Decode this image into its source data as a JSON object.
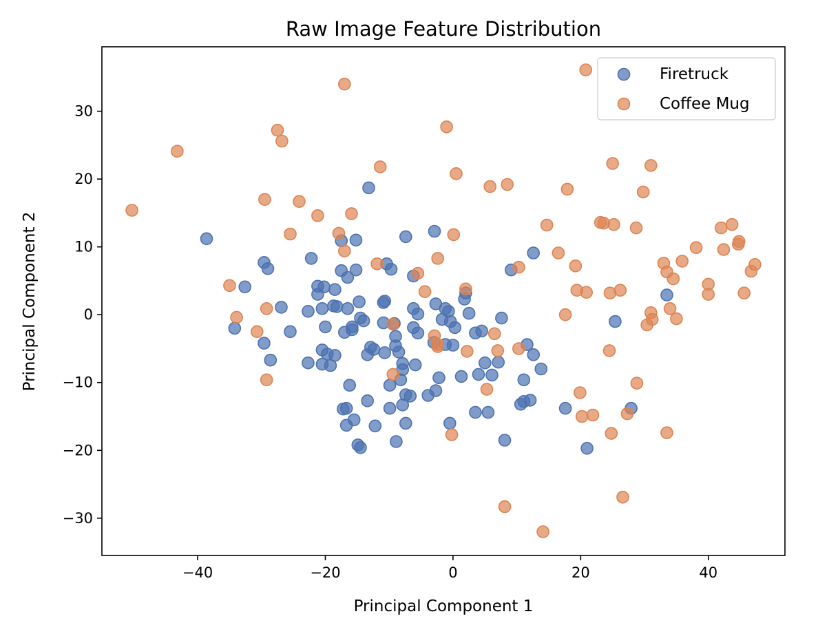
{
  "chart_data": {
    "type": "scatter",
    "title": "Raw Image Feature Distribution",
    "xlabel": "Principal Component 1",
    "ylabel": "Principal Component 2",
    "xlim": [
      -55,
      52
    ],
    "ylim": [
      -35.5,
      39.5
    ],
    "xticks": [
      -40,
      -20,
      0,
      20,
      40
    ],
    "yticks": [
      -30,
      -20,
      -10,
      0,
      10,
      20,
      30
    ],
    "grid": false,
    "legend_position": "top-right",
    "series": [
      {
        "name": "Firetruck",
        "color": "#4C72B0",
        "points": [
          [
            -38.6,
            11.2
          ],
          [
            -34.2,
            -2.0
          ],
          [
            -32.6,
            4.1
          ],
          [
            -29.6,
            7.7
          ],
          [
            -29.0,
            6.8
          ],
          [
            -29.6,
            -4.2
          ],
          [
            -28.6,
            -6.7
          ],
          [
            -26.9,
            1.1
          ],
          [
            -25.5,
            -2.5
          ],
          [
            -22.7,
            0.5
          ],
          [
            -22.2,
            8.3
          ],
          [
            -22.7,
            -7.1
          ],
          [
            -21.2,
            4.2
          ],
          [
            -21.2,
            3.0
          ],
          [
            -20.2,
            4.1
          ],
          [
            -20.5,
            0.9
          ],
          [
            -20.0,
            -1.8
          ],
          [
            -20.5,
            -5.2
          ],
          [
            -19.7,
            -5.8
          ],
          [
            -20.5,
            -7.3
          ],
          [
            -19.2,
            -7.5
          ],
          [
            -18.7,
            1.3
          ],
          [
            -18.2,
            1.2
          ],
          [
            -18.5,
            3.7
          ],
          [
            -18.5,
            -6.0
          ],
          [
            -17.5,
            10.9
          ],
          [
            -17.5,
            6.5
          ],
          [
            -16.5,
            5.5
          ],
          [
            -16.5,
            0.9
          ],
          [
            -17.0,
            -2.6
          ],
          [
            -15.8,
            -1.8
          ],
          [
            -15.8,
            -2.2
          ],
          [
            -15.2,
            11.0
          ],
          [
            -15.2,
            6.6
          ],
          [
            -14.7,
            1.9
          ],
          [
            -14.5,
            -0.5
          ],
          [
            -14.0,
            -0.9
          ],
          [
            -16.2,
            -10.4
          ],
          [
            -17.2,
            -13.9
          ],
          [
            -16.7,
            -13.8
          ],
          [
            -16.7,
            -16.3
          ],
          [
            -15.5,
            -15.5
          ],
          [
            -14.9,
            -19.2
          ],
          [
            -14.5,
            -19.6
          ],
          [
            -13.2,
            18.7
          ],
          [
            -13.4,
            -5.9
          ],
          [
            -12.9,
            -4.8
          ],
          [
            -12.4,
            -5.1
          ],
          [
            -13.4,
            -12.7
          ],
          [
            -12.2,
            -16.4
          ],
          [
            -10.9,
            1.8
          ],
          [
            -10.7,
            2.0
          ],
          [
            -10.4,
            7.5
          ],
          [
            -10.9,
            -1.2
          ],
          [
            -10.7,
            -5.6
          ],
          [
            -9.7,
            6.7
          ],
          [
            -9.2,
            -1.3
          ],
          [
            -9.0,
            -3.2
          ],
          [
            -9.0,
            -4.6
          ],
          [
            -8.5,
            -5.5
          ],
          [
            -9.9,
            -10.4
          ],
          [
            -9.9,
            -13.8
          ],
          [
            -8.2,
            -9.6
          ],
          [
            -7.9,
            -7.2
          ],
          [
            -7.9,
            -8.1
          ],
          [
            -7.9,
            -13.3
          ],
          [
            -7.4,
            -11.8
          ],
          [
            -7.4,
            -16.0
          ],
          [
            -6.7,
            -12.0
          ],
          [
            -8.9,
            -18.7
          ],
          [
            -7.4,
            11.5
          ],
          [
            -6.2,
            5.7
          ],
          [
            -6.2,
            0.9
          ],
          [
            -6.2,
            -1.9
          ],
          [
            -5.9,
            -7.4
          ],
          [
            -5.5,
            0.1
          ],
          [
            -5.5,
            -2.7
          ],
          [
            -2.9,
            12.3
          ],
          [
            -2.7,
            1.6
          ],
          [
            -3.0,
            -4.1
          ],
          [
            -1.7,
            -0.7
          ],
          [
            -1.2,
            0.9
          ],
          [
            -0.7,
            0.5
          ],
          [
            -0.4,
            -1.0
          ],
          [
            -1.2,
            -4.4
          ],
          [
            0.0,
            -4.5
          ],
          [
            -3.9,
            -11.9
          ],
          [
            -2.7,
            -11.2
          ],
          [
            -2.2,
            -9.3
          ],
          [
            0.3,
            -1.9
          ],
          [
            -0.5,
            -16.0
          ],
          [
            1.3,
            -9.1
          ],
          [
            1.8,
            2.3
          ],
          [
            2.0,
            3.2
          ],
          [
            2.5,
            0.2
          ],
          [
            3.5,
            -2.7
          ],
          [
            4.0,
            -8.8
          ],
          [
            3.5,
            -14.4
          ],
          [
            4.5,
            -2.4
          ],
          [
            5.0,
            -7.1
          ],
          [
            5.5,
            -14.4
          ],
          [
            6.1,
            -8.9
          ],
          [
            7.1,
            -7.0
          ],
          [
            7.6,
            -0.5
          ],
          [
            8.1,
            -18.5
          ],
          [
            9.1,
            6.6
          ],
          [
            10.6,
            -13.2
          ],
          [
            11.1,
            -9.6
          ],
          [
            11.1,
            -12.8
          ],
          [
            11.6,
            -4.4
          ],
          [
            12.1,
            -12.6
          ],
          [
            12.6,
            -5.9
          ],
          [
            12.6,
            9.1
          ],
          [
            13.8,
            -8.0
          ],
          [
            17.6,
            -13.8
          ],
          [
            21.0,
            -19.7
          ],
          [
            25.4,
            -1.0
          ],
          [
            27.9,
            -13.8
          ],
          [
            33.5,
            2.9
          ]
        ]
      },
      {
        "name": "Coffee Mug",
        "color": "#DD8452",
        "points": [
          [
            -50.3,
            15.4
          ],
          [
            -43.2,
            24.1
          ],
          [
            -35.0,
            4.3
          ],
          [
            -33.9,
            -0.4
          ],
          [
            -30.7,
            -2.5
          ],
          [
            -29.5,
            17.0
          ],
          [
            -29.2,
            0.9
          ],
          [
            -29.2,
            -9.6
          ],
          [
            -27.5,
            27.2
          ],
          [
            -26.8,
            25.6
          ],
          [
            -25.5,
            11.9
          ],
          [
            -24.1,
            16.7
          ],
          [
            -21.2,
            14.6
          ],
          [
            -17.9,
            12.0
          ],
          [
            -17.0,
            34.0
          ],
          [
            -17.0,
            9.4
          ],
          [
            -15.9,
            14.9
          ],
          [
            -11.4,
            21.8
          ],
          [
            -11.9,
            7.5
          ],
          [
            -9.4,
            -1.4
          ],
          [
            -9.4,
            -8.8
          ],
          [
            -5.5,
            6.1
          ],
          [
            -4.4,
            3.4
          ],
          [
            -2.9,
            -3.1
          ],
          [
            -2.4,
            8.3
          ],
          [
            -2.4,
            -4.4
          ],
          [
            -2.4,
            -4.7
          ],
          [
            -1.0,
            27.7
          ],
          [
            -0.2,
            -17.7
          ],
          [
            0.1,
            11.8
          ],
          [
            0.5,
            20.8
          ],
          [
            2.0,
            3.8
          ],
          [
            2.2,
            -5.4
          ],
          [
            5.8,
            18.9
          ],
          [
            6.5,
            -2.8
          ],
          [
            7.0,
            -5.3
          ],
          [
            5.3,
            -11.0
          ],
          [
            8.5,
            19.2
          ],
          [
            8.1,
            -28.3
          ],
          [
            10.3,
            7.0
          ],
          [
            10.3,
            -5.0
          ],
          [
            14.1,
            -32.0
          ],
          [
            14.7,
            13.2
          ],
          [
            16.5,
            9.1
          ],
          [
            17.6,
            0.0
          ],
          [
            17.9,
            18.5
          ],
          [
            19.2,
            7.2
          ],
          [
            19.4,
            3.6
          ],
          [
            19.9,
            -11.5
          ],
          [
            20.2,
            -15.0
          ],
          [
            20.8,
            36.1
          ],
          [
            20.9,
            3.3
          ],
          [
            21.9,
            -14.8
          ],
          [
            23.1,
            13.6
          ],
          [
            23.6,
            13.5
          ],
          [
            24.5,
            -5.3
          ],
          [
            24.6,
            3.2
          ],
          [
            24.8,
            -17.5
          ],
          [
            25.0,
            22.3
          ],
          [
            25.2,
            13.3
          ],
          [
            26.2,
            3.6
          ],
          [
            26.6,
            -26.9
          ],
          [
            27.3,
            -14.6
          ],
          [
            28.7,
            12.8
          ],
          [
            28.8,
            -10.1
          ],
          [
            29.8,
            18.1
          ],
          [
            30.4,
            -1.5
          ],
          [
            31.0,
            22.0
          ],
          [
            31.0,
            0.3
          ],
          [
            31.2,
            -0.7
          ],
          [
            33.0,
            7.6
          ],
          [
            33.5,
            6.3
          ],
          [
            33.5,
            -17.4
          ],
          [
            34.0,
            0.9
          ],
          [
            34.5,
            5.3
          ],
          [
            35.0,
            -0.6
          ],
          [
            35.9,
            7.9
          ],
          [
            38.1,
            9.9
          ],
          [
            40.0,
            4.5
          ],
          [
            40.0,
            3.0
          ],
          [
            42.0,
            12.8
          ],
          [
            42.4,
            9.6
          ],
          [
            43.7,
            13.3
          ],
          [
            44.7,
            10.4
          ],
          [
            44.8,
            10.8
          ],
          [
            45.6,
            3.2
          ],
          [
            46.7,
            6.4
          ],
          [
            47.3,
            7.4
          ]
        ]
      }
    ]
  }
}
